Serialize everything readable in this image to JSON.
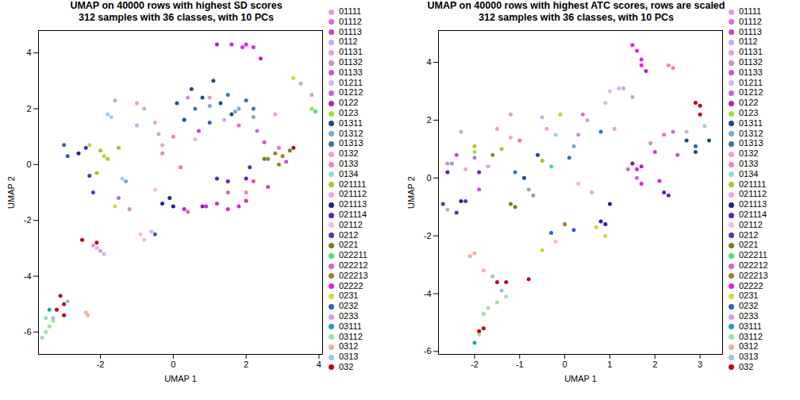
{
  "chart_data": [
    {
      "type": "scatter",
      "title": "UMAP on 40000 rows with highest SD scores",
      "subtitle": "312 samples with 36 classes, with 10 PCs",
      "x_label": "UMAP 1",
      "y_label": "UMAP 2",
      "xlim": [
        -3.7,
        4.1
      ],
      "xticks": [
        -2,
        0,
        2,
        4
      ],
      "ylim": [
        -6.8,
        4.8
      ],
      "yticks": [
        -6,
        -4,
        -2,
        0,
        2,
        4
      ],
      "grid": false,
      "legend": "right",
      "marker": "circle",
      "series": [
        {
          "name": "01111",
          "color": "#d8a0d8",
          "x": [
            -1.6,
            1.0,
            -0.4
          ],
          "y": [
            2.3,
            2.4,
            1.1
          ]
        },
        {
          "name": "01112",
          "color": "#e070c8",
          "x": [
            1.8,
            0.2,
            2.9
          ],
          "y": [
            1.4,
            -0.1,
            0.6
          ]
        },
        {
          "name": "01113",
          "color": "#d040c0",
          "x": [
            2.6,
            0.7
          ],
          "y": [
            -0.8,
            1.2
          ]
        },
        {
          "name": "0112",
          "color": "#c8b0e8",
          "x": [
            -1.0,
            1.4
          ],
          "y": [
            1.4,
            1.6
          ]
        },
        {
          "name": "01131",
          "color": "#e4a0e4",
          "x": [
            -0.8,
            2.8
          ],
          "y": [
            2.0,
            1.8
          ]
        },
        {
          "name": "01132",
          "color": "#c890d0",
          "x": [
            -1.2,
            0.4
          ],
          "y": [
            -1.6,
            2.4
          ]
        },
        {
          "name": "01133",
          "color": "#d050d0",
          "x": [
            2.5,
            2.2,
            3.1
          ],
          "y": [
            0.8,
            -0.6,
            0.1
          ]
        },
        {
          "name": "01211",
          "color": "#d8b8e8",
          "x": [
            -2.1,
            -1.9
          ],
          "y": [
            -3.0,
            -3.2
          ]
        },
        {
          "name": "01212",
          "color": "#c070d0",
          "x": [
            2.3,
            -1.5
          ],
          "y": [
            1.2,
            -1.2
          ]
        },
        {
          "name": "0122",
          "color": "#c020c0",
          "x": [
            1.2,
            0.3,
            2.4
          ],
          "y": [
            4.3,
            -1.6,
            3.8
          ]
        },
        {
          "name": "0123",
          "color": "#a0e040",
          "x": [
            -2.3,
            -1.9,
            3.8
          ],
          "y": [
            0.7,
            0.3,
            2.0
          ]
        },
        {
          "name": "01311",
          "color": "#1a5080",
          "x": [
            0.5,
            0.8,
            1.3,
            1.6,
            0.3,
            0.1,
            1.1
          ],
          "y": [
            2.7,
            2.4,
            2.2,
            1.8,
            1.6,
            2.2,
            3.0
          ]
        },
        {
          "name": "01312",
          "color": "#80a8c8",
          "x": [
            1.0,
            1.8,
            2.2,
            1.7,
            -1.3
          ],
          "y": [
            2.1,
            2.0,
            1.7,
            1.9,
            -0.6
          ]
        },
        {
          "name": "01313",
          "color": "#3878a8",
          "x": [
            1.5,
            2.0,
            0.6,
            2.2
          ],
          "y": [
            2.5,
            2.3,
            2.0,
            2.0
          ]
        },
        {
          "name": "0132",
          "color": "#f0a0c8",
          "x": [
            -0.5,
            -0.3,
            -1.0
          ],
          "y": [
            1.5,
            0.7,
            2.2
          ]
        },
        {
          "name": "0133",
          "color": "#f080c0",
          "x": [
            0.0,
            -0.3,
            2.0
          ],
          "y": [
            1.0,
            0.4,
            -1.0
          ]
        },
        {
          "name": "0134",
          "color": "#a0d0f0",
          "x": [
            -1.8,
            -1.7,
            -1.4
          ],
          "y": [
            1.8,
            1.7,
            -0.5
          ]
        },
        {
          "name": "021111",
          "color": "#a8c830",
          "x": [
            -2.0,
            -1.8,
            -2.1,
            -1.5
          ],
          "y": [
            0.5,
            0.2,
            -0.3,
            0.6
          ]
        },
        {
          "name": "021112",
          "color": "#f0a8d8",
          "x": [
            -0.6,
            0.6
          ],
          "y": [
            -2.4,
            0.9
          ]
        },
        {
          "name": "021113",
          "color": "#2020a0",
          "x": [
            -0.3,
            -0.1,
            0.0,
            -2.6
          ],
          "y": [
            -1.4,
            -1.2,
            -1.5,
            0.4
          ]
        },
        {
          "name": "021114",
          "color": "#6020c0",
          "x": [
            1.2,
            1.5,
            2.0,
            2.1,
            -2.4
          ],
          "y": [
            -0.5,
            -0.6,
            -0.5,
            -0.1,
            0.6
          ]
        },
        {
          "name": "02112",
          "color": "#f8b8e0",
          "x": [
            -0.9,
            -0.8,
            -0.5
          ],
          "y": [
            -2.5,
            -2.7,
            -0.9
          ]
        },
        {
          "name": "0212",
          "color": "#6030b0",
          "x": [
            -2.2,
            -2.3,
            0.8
          ],
          "y": [
            -1.0,
            -0.4,
            -1.5
          ]
        },
        {
          "name": "0221",
          "color": "#708020",
          "x": [
            3.2,
            2.5
          ],
          "y": [
            0.5,
            0.2
          ]
        },
        {
          "name": "022211",
          "color": "#40e080",
          "x": [
            3.9
          ],
          "y": [
            1.9
          ]
        },
        {
          "name": "022212",
          "color": "#e060c0",
          "x": [
            0.4,
            1.5
          ],
          "y": [
            -1.7,
            -1.0
          ]
        },
        {
          "name": "022213",
          "color": "#a08020",
          "x": [
            2.6,
            2.8,
            3.0,
            2.9
          ],
          "y": [
            0.2,
            0.4,
            0.3,
            0.0
          ]
        },
        {
          "name": "02222",
          "color": "#e020e0",
          "x": [
            1.6,
            1.9,
            2.0,
            2.2,
            0.9,
            1.2,
            1.5,
            1.8,
            2.0
          ],
          "y": [
            4.3,
            4.2,
            4.3,
            4.2,
            -1.5,
            -1.4,
            -1.6,
            -1.5,
            -1.3
          ]
        },
        {
          "name": "0231",
          "color": "#c0e040",
          "x": [
            3.3,
            -1.6
          ],
          "y": [
            3.1,
            -1.5
          ]
        },
        {
          "name": "0232",
          "color": "#3060d0",
          "x": [
            -3.0,
            -2.9,
            -0.5,
            1.0
          ],
          "y": [
            0.7,
            0.3,
            -2.5,
            1.5
          ]
        },
        {
          "name": "0233",
          "color": "#d0a0e0",
          "x": [
            3.5,
            3.8,
            -2.2,
            -2.0
          ],
          "y": [
            2.9,
            2.5,
            -2.9,
            -3.1
          ]
        },
        {
          "name": "03111",
          "color": "#20a0c0",
          "x": [
            -3.4
          ],
          "y": [
            -5.2
          ]
        },
        {
          "name": "03112",
          "color": "#a0e0a0",
          "x": [
            -3.5,
            -3.4,
            -3.6,
            -3.3,
            -3.5
          ],
          "y": [
            -6.0,
            -5.8,
            -6.2,
            -5.6,
            -5.5
          ]
        },
        {
          "name": "0312",
          "color": "#f0b0a0",
          "x": [
            -2.4,
            -2.35
          ],
          "y": [
            -5.3,
            -5.4
          ]
        },
        {
          "name": "0313",
          "color": "#a0c0e0",
          "x": [
            -3.3,
            -2.9
          ],
          "y": [
            -5.5,
            -4.9
          ]
        },
        {
          "name": "032",
          "color": "#c00020",
          "x": [
            -3.1,
            -3.0,
            -3.2,
            -3.0,
            -2.5,
            -2.1,
            3.3
          ],
          "y": [
            -4.7,
            -5.0,
            -5.2,
            -5.4,
            -2.7,
            -2.8,
            0.6
          ]
        }
      ]
    },
    {
      "type": "scatter",
      "title": "UMAP on 40000 rows with highest ATC scores, rows are scaled",
      "subtitle": "312 samples with 36 classes, with 10 PCs",
      "x_label": "UMAP 1",
      "y_label": "UMAP 2",
      "xlim": [
        -2.8,
        3.5
      ],
      "xticks": [
        -2,
        -1,
        0,
        1,
        2,
        3
      ],
      "ylim": [
        -6.1,
        5.1
      ],
      "yticks": [
        -6,
        -4,
        -2,
        0,
        2,
        4
      ],
      "grid": false,
      "legend": "right",
      "marker": "circle",
      "series": [
        {
          "name": "01111",
          "color": "#d8a0d8",
          "x": [
            -2.3,
            0.5,
            -1.2
          ],
          "y": [
            1.6,
            2.0,
            2.2
          ]
        },
        {
          "name": "01112",
          "color": "#e070c8",
          "x": [
            0.4,
            2.2,
            -1.0
          ],
          "y": [
            2.2,
            1.5,
            1.3
          ]
        },
        {
          "name": "01113",
          "color": "#d040c0",
          "x": [
            2.0,
            -2.4
          ],
          "y": [
            0.9,
            0.8
          ]
        },
        {
          "name": "0112",
          "color": "#c8b0e8",
          "x": [
            -0.5,
            2.7
          ],
          "y": [
            2.1,
            1.6
          ]
        },
        {
          "name": "01131",
          "color": "#e4a0e4",
          "x": [
            1.1,
            -1.7
          ],
          "y": [
            1.7,
            0.4
          ]
        },
        {
          "name": "01132",
          "color": "#c890d0",
          "x": [
            0.3,
            -2.6
          ],
          "y": [
            1.5,
            0.5
          ]
        },
        {
          "name": "01133",
          "color": "#d050d0",
          "x": [
            2.5,
            -1.9
          ],
          "y": [
            0.8,
            -0.4
          ]
        },
        {
          "name": "01211",
          "color": "#d8b8e8",
          "x": [
            1.0,
            1.2,
            0.9
          ],
          "y": [
            3.0,
            3.1,
            2.6
          ]
        },
        {
          "name": "01212",
          "color": "#c070d0",
          "x": [
            1.4,
            -2.0
          ],
          "y": [
            0.3,
            0.7
          ]
        },
        {
          "name": "0122",
          "color": "#c020c0",
          "x": [
            1.8,
            1.7
          ],
          "y": [
            3.7,
            0.4
          ]
        },
        {
          "name": "0123",
          "color": "#a0e040",
          "x": [
            -0.1,
            -2.0
          ],
          "y": [
            2.2,
            0.9
          ]
        },
        {
          "name": "01311",
          "color": "#1a5080",
          "x": [
            2.7,
            3.2,
            2.9,
            -0.6,
            -0.9
          ],
          "y": [
            1.3,
            1.3,
            0.9,
            0.8,
            0.0
          ]
        },
        {
          "name": "01312",
          "color": "#80a8c8",
          "x": [
            -0.8,
            -0.7,
            0.2,
            -2.5
          ],
          "y": [
            -0.4,
            -0.6,
            1.1,
            0.5
          ]
        },
        {
          "name": "01313",
          "color": "#3878a8",
          "x": [
            0.1,
            0.8,
            -1.1
          ],
          "y": [
            0.7,
            1.6,
            0.2
          ]
        },
        {
          "name": "0132",
          "color": "#f0a0c8",
          "x": [
            -1.5,
            -0.4,
            0.6
          ],
          "y": [
            1.7,
            1.7,
            -0.5
          ]
        },
        {
          "name": "0133",
          "color": "#f080c0",
          "x": [
            2.3,
            2.4,
            1.9
          ],
          "y": [
            3.9,
            3.8,
            1.2
          ]
        },
        {
          "name": "0134",
          "color": "#a0d0f0",
          "x": [
            3.1,
            -0.2
          ],
          "y": [
            1.8,
            1.5
          ]
        },
        {
          "name": "021111",
          "color": "#a8c830",
          "x": [
            -2.0,
            -1.4,
            -0.5
          ],
          "y": [
            1.1,
            1.0,
            0.6
          ]
        },
        {
          "name": "021112",
          "color": "#f0a8d8",
          "x": [
            -1.2,
            -2.2
          ],
          "y": [
            1.4,
            0.3
          ]
        },
        {
          "name": "021113",
          "color": "#2020a0",
          "x": [
            0.8,
            0.9,
            1.0,
            -2.3
          ],
          "y": [
            -1.5,
            -1.6,
            -0.9,
            -0.8
          ]
        },
        {
          "name": "021114",
          "color": "#6020c0",
          "x": [
            1.5,
            2.2,
            2.3,
            -2.6
          ],
          "y": [
            0.5,
            -0.5,
            -0.6,
            0.2
          ]
        },
        {
          "name": "02112",
          "color": "#f8b8e0",
          "x": [
            -0.2,
            0.3
          ],
          "y": [
            -2.2,
            -0.2
          ]
        },
        {
          "name": "0212",
          "color": "#6030b0",
          "x": [
            -2.7,
            -2.4,
            -2.2,
            -1.9
          ],
          "y": [
            -0.9,
            -1.2,
            -0.8,
            0.2
          ]
        },
        {
          "name": "0221",
          "color": "#708020",
          "x": [
            -1.2,
            -1.1
          ],
          "y": [
            -0.9,
            -1.0
          ]
        },
        {
          "name": "022211",
          "color": "#40e080",
          "x": [
            -0.3
          ],
          "y": [
            0.4
          ]
        },
        {
          "name": "022212",
          "color": "#e060c0",
          "x": [
            1.6,
            2.4
          ],
          "y": [
            0.0,
            1.6
          ]
        },
        {
          "name": "022213",
          "color": "#a08020",
          "x": [
            -1.6,
            0.0
          ],
          "y": [
            0.8,
            -1.6
          ]
        },
        {
          "name": "02222",
          "color": "#e020e0",
          "x": [
            1.5,
            1.6,
            1.7,
            1.7,
            1.6,
            1.7,
            2.1
          ],
          "y": [
            4.6,
            4.4,
            4.1,
            3.9,
            0.3,
            -0.2,
            -0.1
          ]
        },
        {
          "name": "0231",
          "color": "#c0e040",
          "x": [
            -0.5,
            0.7,
            0.9
          ],
          "y": [
            -2.5,
            -1.7,
            -2.0
          ]
        },
        {
          "name": "0232",
          "color": "#3060d0",
          "x": [
            -0.3,
            0.2,
            2.9
          ],
          "y": [
            -1.9,
            -1.8,
            1.1
          ]
        },
        {
          "name": "0233",
          "color": "#d0a0e0",
          "x": [
            1.5,
            1.3,
            -2.6
          ],
          "y": [
            2.8,
            3.1,
            -1.1
          ]
        },
        {
          "name": "03111",
          "color": "#20a0c0",
          "x": [
            -2.0
          ],
          "y": [
            -5.7
          ]
        },
        {
          "name": "03112",
          "color": "#a0e0a0",
          "x": [
            -1.3,
            -1.5,
            -1.7,
            -1.8,
            -1.9
          ],
          "y": [
            -4.1,
            -4.3,
            -4.5,
            -4.7,
            -5.4
          ]
        },
        {
          "name": "0312",
          "color": "#f0b0a0",
          "x": [
            -2.1,
            -2.0,
            -1.8
          ],
          "y": [
            -2.7,
            -2.6,
            -3.2
          ]
        },
        {
          "name": "0313",
          "color": "#a0c0e0",
          "x": [
            -1.6,
            -1.4
          ],
          "y": [
            -3.4,
            -3.9
          ]
        },
        {
          "name": "032",
          "color": "#c00020",
          "x": [
            -1.3,
            -1.5,
            -1.9,
            -1.8,
            -0.8,
            2.9,
            3.0,
            3.0
          ],
          "y": [
            -3.6,
            -3.6,
            -5.3,
            -5.2,
            -3.5,
            2.6,
            2.5,
            2.2
          ]
        }
      ]
    }
  ]
}
